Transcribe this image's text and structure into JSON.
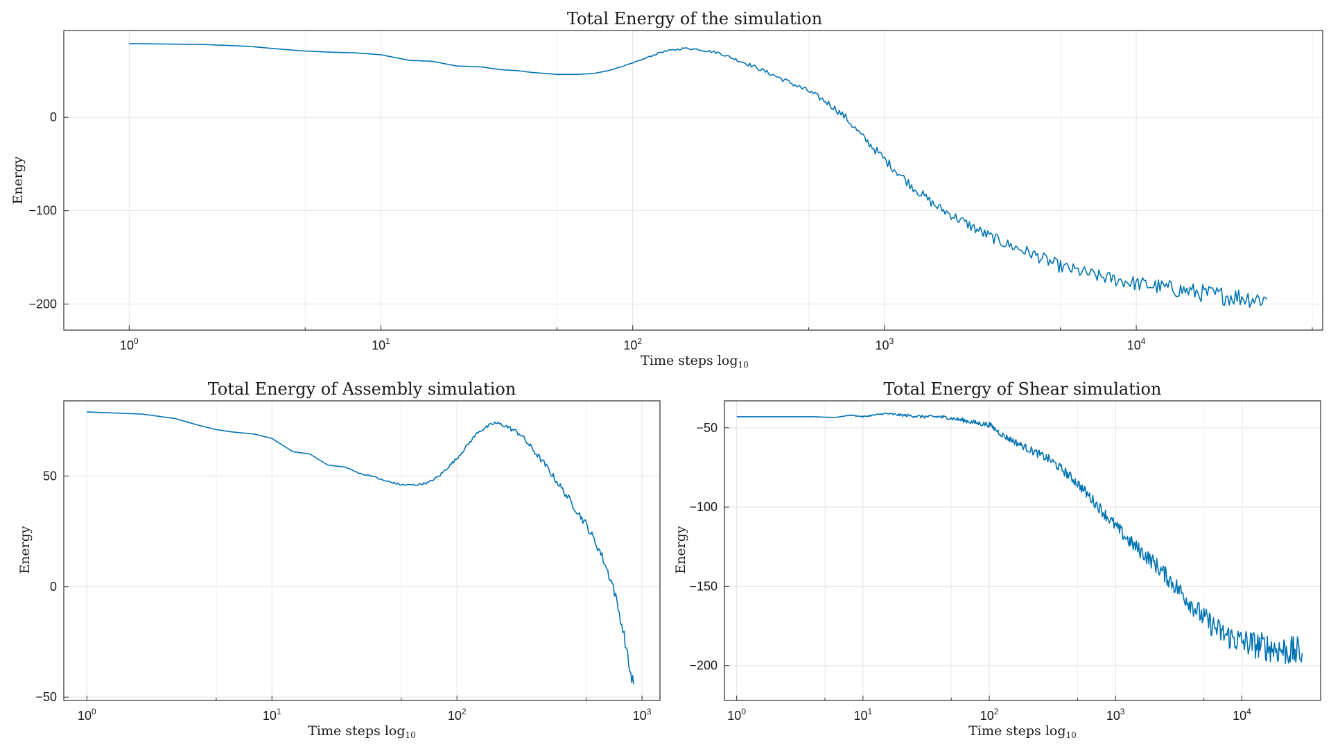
{
  "colors": {
    "series": "#0072b2",
    "grid": "#e3e3e3",
    "frame": "#2b2b2b"
  },
  "chart_data": [
    {
      "type": "line",
      "title": "Total Energy of the simulation",
      "xlabel": "Time steps log",
      "xlabel_sub": "10",
      "ylabel": "Energy",
      "x_scale": "log10",
      "xlim": [
        0.55,
        55000
      ],
      "ylim": [
        -228,
        93
      ],
      "x_ticks": [
        1,
        10,
        100,
        1000,
        10000
      ],
      "x_tick_labels": [
        [
          "10",
          "0"
        ],
        [
          "10",
          "1"
        ],
        [
          "10",
          "2"
        ],
        [
          "10",
          "3"
        ],
        [
          "10",
          "4"
        ]
      ],
      "y_ticks": [
        0,
        -100,
        -200
      ],
      "y_tick_labels": [
        "0",
        "−100",
        "−200"
      ],
      "grid": true,
      "series": [
        {
          "x": [
            1,
            2,
            3,
            4,
            5,
            6,
            8,
            10,
            13,
            16,
            20,
            25,
            30,
            35,
            40,
            45,
            50,
            60,
            70,
            80,
            100,
            130,
            160,
            180,
            220,
            300,
            400,
            500,
            600,
            700,
            800,
            1000,
            1300,
            1600,
            2000,
            2500,
            3000,
            4000,
            5000,
            7000,
            10000,
            15000,
            20000,
            33000
          ],
          "y": [
            79,
            78,
            76,
            73,
            71,
            70,
            69,
            67,
            61,
            60,
            55,
            54,
            51,
            50,
            48,
            47,
            46,
            46,
            47,
            50,
            58,
            70,
            74,
            73,
            69,
            55,
            40,
            28,
            15,
            0,
            -18,
            -45,
            -75,
            -95,
            -110,
            -125,
            -135,
            -148,
            -160,
            -170,
            -178,
            -185,
            -190,
            -195
          ],
          "noise": [
            0,
            0,
            0,
            0,
            0,
            0,
            0,
            0,
            0,
            0,
            0,
            0,
            0,
            0,
            0,
            0,
            0,
            0,
            0,
            0,
            0.5,
            1,
            1,
            1,
            1.5,
            2,
            2.5,
            3,
            3.5,
            4,
            4,
            5,
            5,
            5,
            5.5,
            6,
            6,
            6.5,
            7,
            7,
            8,
            9,
            10,
            11
          ]
        }
      ]
    },
    {
      "type": "line",
      "title": "Total Energy of Assembly simulation",
      "xlabel": "Time steps log",
      "xlabel_sub": "10",
      "ylabel": "Energy",
      "x_scale": "log10",
      "xlim": [
        0.75,
        1250
      ],
      "ylim": [
        -51.5,
        84
      ],
      "x_ticks": [
        1,
        10,
        100,
        1000
      ],
      "x_tick_labels": [
        [
          "10",
          "0"
        ],
        [
          "10",
          "1"
        ],
        [
          "10",
          "2"
        ],
        [
          "10",
          "3"
        ]
      ],
      "y_ticks": [
        50,
        0,
        -50
      ],
      "y_tick_labels": [
        "50",
        "0",
        "−50"
      ],
      "grid": true,
      "series": [
        {
          "x": [
            1,
            2,
            3,
            4,
            5,
            6,
            8,
            10,
            13,
            16,
            20,
            25,
            30,
            35,
            40,
            45,
            50,
            60,
            70,
            80,
            100,
            130,
            160,
            180,
            220,
            300,
            400,
            500,
            600,
            700,
            800,
            860,
            900
          ],
          "y": [
            79,
            78,
            76,
            73,
            71,
            70,
            69,
            67,
            61,
            60,
            55,
            54,
            51,
            50,
            48,
            47,
            46,
            46,
            47,
            50,
            58,
            70,
            74,
            73,
            69,
            55,
            40,
            28,
            15,
            0,
            -22,
            -38,
            -44
          ],
          "noise": [
            0,
            0,
            0,
            0,
            0,
            0,
            0,
            0,
            0,
            0,
            0,
            0,
            0.3,
            0.3,
            0.4,
            0.4,
            0.4,
            0.4,
            0.5,
            0.6,
            0.7,
            0.8,
            0.9,
            1,
            1.2,
            1.4,
            1.6,
            1.8,
            2,
            2.2,
            2.4,
            2.6,
            2.8
          ]
        }
      ]
    },
    {
      "type": "line",
      "title": "Total Energy of Shear simulation",
      "xlabel": "Time steps log",
      "xlabel_sub": "10",
      "ylabel": "Energy",
      "x_scale": "log10",
      "xlim": [
        0.8,
        42000
      ],
      "ylim": [
        -222,
        -33
      ],
      "x_ticks": [
        1,
        10,
        100,
        1000,
        10000
      ],
      "x_tick_labels": [
        [
          "10",
          "0"
        ],
        [
          "10",
          "1"
        ],
        [
          "10",
          "2"
        ],
        [
          "10",
          "3"
        ],
        [
          "10",
          "4"
        ]
      ],
      "y_ticks": [
        -50,
        -100,
        -150,
        -200
      ],
      "y_tick_labels": [
        "−50",
        "−100",
        "−150",
        "−200"
      ],
      "grid": true,
      "series": [
        {
          "x": [
            1,
            2,
            4,
            6,
            8,
            10,
            15,
            20,
            30,
            40,
            50,
            60,
            80,
            100,
            130,
            170,
            200,
            300,
            400,
            500,
            700,
            1000,
            1300,
            2000,
            3000,
            5000,
            7000,
            10000,
            15000,
            20000,
            30000
          ],
          "y": [
            -43,
            -43,
            -43,
            -43.5,
            -42,
            -43,
            -41,
            -42,
            -43,
            -43,
            -44,
            -45,
            -47,
            -48,
            -55,
            -60,
            -63,
            -70,
            -78,
            -85,
            -98,
            -112,
            -122,
            -135,
            -150,
            -170,
            -180,
            -185,
            -188,
            -190,
            -192
          ],
          "noise": [
            0,
            0,
            0,
            0,
            0.3,
            0.4,
            0.6,
            0.8,
            1,
            1.2,
            1.2,
            1.5,
            1.5,
            1.8,
            2,
            2.2,
            2.4,
            2.8,
            3,
            3.2,
            3.5,
            4,
            4.5,
            5,
            6,
            7,
            8,
            8.5,
            9,
            9.5,
            10
          ]
        }
      ]
    }
  ]
}
